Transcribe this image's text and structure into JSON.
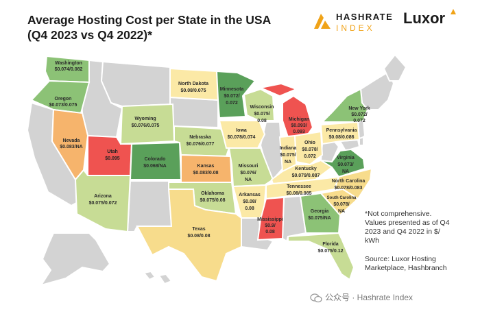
{
  "title": {
    "line1": "Average Hosting Cost per State in the USA",
    "line2": "(Q4 2023 vs Q4 2022)*"
  },
  "logos": {
    "hashrate_top": "HASHRATE",
    "hashrate_bottom": "INDEX",
    "luxor": "Luxor"
  },
  "colors": {
    "green": "#8cc276",
    "dark_green": "#5aa05a",
    "light_green": "#c7dc95",
    "yellow": "#f7dc8c",
    "light_yellow": "#fbe9a6",
    "orange": "#f6b46c",
    "red": "#ef5350",
    "grey": "#d3d3d3",
    "accent": "#f0a318"
  },
  "states": [
    {
      "name": "Washington",
      "value": "$0.074/0.082"
    },
    {
      "name": "Oregon",
      "value": "$0.073/0.075"
    },
    {
      "name": "Nevada",
      "value": "$0.083/NA"
    },
    {
      "name": "Utah",
      "value": "$0.095"
    },
    {
      "name": "Arizona",
      "value": "$0.075/0.072"
    },
    {
      "name": "Wyoming",
      "value": "$0.076/0.075"
    },
    {
      "name": "Colorado",
      "value": "$0.068/NA"
    },
    {
      "name": "North Dakota",
      "value": "$0.08/0.075"
    },
    {
      "name": "Nebraska",
      "value": "$0.076/0.077"
    },
    {
      "name": "Kansas",
      "value": "$0.083/0.08"
    },
    {
      "name": "Oklahoma",
      "value": "$0.075/0.08"
    },
    {
      "name": "Texas",
      "value": "$0.08/0.08"
    },
    {
      "name": "Minnesota",
      "value": "$0.072/"
    },
    {
      "name": "Minnesota_2",
      "value": "0.072"
    },
    {
      "name": "Iowa",
      "value": "$0.078/0.074"
    },
    {
      "name": "Missouri",
      "value": "$0.076/"
    },
    {
      "name": "Missouri_2",
      "value": "NA"
    },
    {
      "name": "Arkansas",
      "value": "$0.08/"
    },
    {
      "name": "Arkansas_2",
      "value": "0.08"
    },
    {
      "name": "Wisconsin",
      "value": "$0.075/"
    },
    {
      "name": "Wisconsin_2",
      "value": "0.08"
    },
    {
      "name": "Michigan",
      "value": "$0.093/"
    },
    {
      "name": "Michigan_2",
      "value": "0.093"
    },
    {
      "name": "Mississippi",
      "value": "$0.9/"
    },
    {
      "name": "Mississippi_2",
      "value": "0.08"
    },
    {
      "name": "Indiana",
      "value": "$0.075/"
    },
    {
      "name": "Indiana_2",
      "value": "NA"
    },
    {
      "name": "Ohio",
      "value": "$0.078/"
    },
    {
      "name": "Ohio_2",
      "value": "0.072"
    },
    {
      "name": "Kentucky",
      "value": "$0.079/0.087"
    },
    {
      "name": "Tennessee",
      "value": "$0.08/0.085"
    },
    {
      "name": "Georgia",
      "value": "$0.075/NA"
    },
    {
      "name": "Florida",
      "value": "$0.075/0.12"
    },
    {
      "name": "South Carolina",
      "value": "$0.078/"
    },
    {
      "name": "South Carolina_2",
      "value": "NA"
    },
    {
      "name": "North Carolina",
      "value": "$0.078/0.083"
    },
    {
      "name": "Virginia",
      "value": "$0.073/"
    },
    {
      "name": "Virginia_2",
      "value": "NA"
    },
    {
      "name": "Pennsylvania",
      "value": "$0.08/0.086"
    },
    {
      "name": "New York",
      "value": "$0.072/"
    },
    {
      "name": "New York_2",
      "value": "0.072"
    }
  ],
  "note": {
    "line1": "*Not comprehensive.",
    "line2": "Values presented as of Q4",
    "line3": "2023 and Q4 2022 in $/",
    "line4": "kWh"
  },
  "source": {
    "line1": "Source: Luxor Hosting",
    "line2": "Marketplace, Hashbranch"
  },
  "watermark": "公众号 · Hashrate Index"
}
